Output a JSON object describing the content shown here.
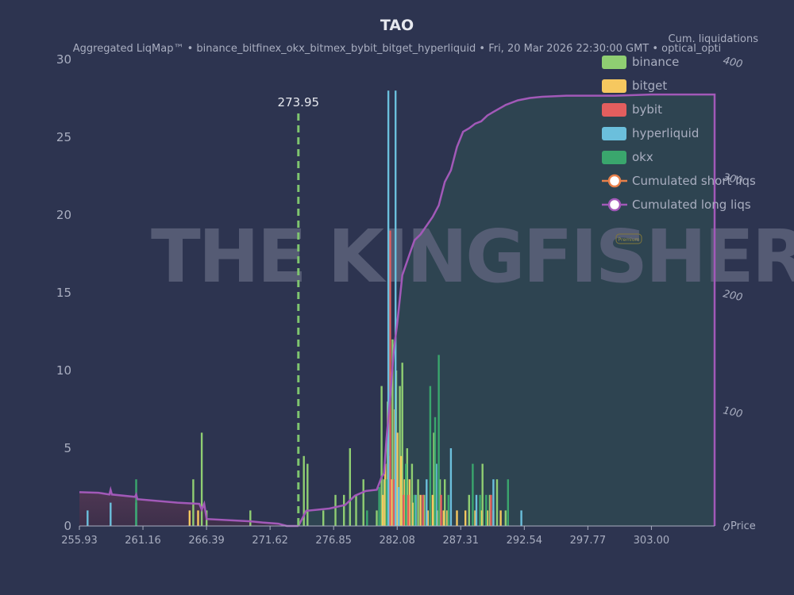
{
  "chart_data": {
    "type": "bar",
    "title": "TAO",
    "subtitle": "Aggregated LiqMap™  •  binance_bitfinex_okx_bitmex_bybit_bitget_hyperliquid  •  Fri, 20 Mar 2026 22:30:00 GMT  •  optical_opti",
    "y2_label": "Cum. liquidations",
    "x_label": "Price",
    "xlim": [
      255.93,
      308.2
    ],
    "ylim": [
      0,
      30
    ],
    "y2lim": [
      0,
      400
    ],
    "x_ticks": [
      "255.93",
      "261.16",
      "266.39",
      "271.62",
      "276.85",
      "282.08",
      "287.31",
      "292.54",
      "297.77",
      "303.00"
    ],
    "y_ticks": [
      "0",
      "5",
      "10",
      "15",
      "20",
      "25",
      "30"
    ],
    "y2_ticks": [
      "0",
      "100",
      "200",
      "300",
      "400"
    ],
    "current_price": {
      "value": 273.95,
      "label": "273.95"
    },
    "legend": [
      {
        "name": "binance",
        "color": "#8fce72",
        "kind": "bar"
      },
      {
        "name": "bitget",
        "color": "#f6c85f",
        "kind": "bar"
      },
      {
        "name": "bybit",
        "color": "#e35e5e",
        "kind": "bar"
      },
      {
        "name": "hyperliquid",
        "color": "#6bbfdc",
        "kind": "bar"
      },
      {
        "name": "okx",
        "color": "#3aa66d",
        "kind": "bar"
      },
      {
        "name": "Cumulated short liqs",
        "color": "#e8804a",
        "kind": "line"
      },
      {
        "name": "Cumulated long liqs",
        "color": "#a259b8",
        "kind": "line"
      }
    ],
    "series": [
      {
        "name": "binance",
        "color": "#8fce72",
        "points": [
          [
            265.3,
            3.0
          ],
          [
            266.0,
            6.0
          ],
          [
            266.4,
            1.0
          ],
          [
            270.0,
            1.0
          ],
          [
            274.4,
            4.5
          ],
          [
            274.7,
            4.0
          ],
          [
            276.0,
            1.0
          ],
          [
            277.0,
            2.0
          ],
          [
            277.7,
            2.0
          ],
          [
            278.2,
            5.0
          ],
          [
            278.7,
            2.0
          ],
          [
            279.3,
            3.0
          ],
          [
            280.4,
            1.0
          ],
          [
            280.8,
            9.0
          ],
          [
            281.0,
            3.0
          ],
          [
            281.3,
            8.0
          ],
          [
            281.7,
            12.0
          ],
          [
            282.0,
            10.0
          ],
          [
            282.3,
            9.0
          ],
          [
            282.5,
            10.5
          ],
          [
            282.9,
            5.0
          ],
          [
            283.3,
            4.0
          ],
          [
            283.8,
            3.0
          ],
          [
            284.3,
            2.0
          ],
          [
            285.1,
            6.0
          ],
          [
            285.6,
            3.0
          ],
          [
            286.0,
            3.0
          ],
          [
            288.0,
            2.0
          ],
          [
            289.1,
            4.0
          ],
          [
            289.7,
            2.0
          ],
          [
            290.3,
            3.0
          ],
          [
            291.0,
            1.0
          ]
        ]
      },
      {
        "name": "bitget",
        "color": "#f6c85f",
        "points": [
          [
            265.0,
            1.0
          ],
          [
            265.7,
            1.0
          ],
          [
            280.9,
            2.0
          ],
          [
            281.1,
            4.0
          ],
          [
            281.4,
            4.5
          ],
          [
            281.6,
            3.0
          ],
          [
            281.9,
            7.5
          ],
          [
            282.1,
            6.0
          ],
          [
            282.4,
            4.5
          ],
          [
            282.7,
            3.0
          ],
          [
            283.1,
            3.0
          ],
          [
            283.4,
            1.5
          ],
          [
            284.0,
            2.0
          ],
          [
            284.6,
            1.0
          ],
          [
            285.0,
            2.0
          ],
          [
            285.4,
            1.0
          ],
          [
            285.9,
            1.0
          ],
          [
            286.2,
            1.0
          ],
          [
            287.0,
            1.0
          ],
          [
            287.7,
            1.0
          ],
          [
            288.5,
            1.0
          ],
          [
            289.0,
            1.0
          ],
          [
            289.5,
            1.0
          ],
          [
            290.0,
            1.0
          ],
          [
            290.6,
            1.0
          ]
        ]
      },
      {
        "name": "bybit",
        "color": "#e35e5e",
        "points": [
          [
            281.5,
            19.0
          ],
          [
            281.8,
            3.0
          ],
          [
            282.6,
            2.0
          ],
          [
            283.0,
            2.0
          ],
          [
            284.2,
            2.0
          ],
          [
            285.7,
            2.0
          ],
          [
            289.8,
            2.0
          ]
        ]
      },
      {
        "name": "hyperliquid",
        "color": "#6bbfdc",
        "points": [
          [
            256.6,
            1.0
          ],
          [
            258.5,
            1.5
          ],
          [
            260.6,
            1.5
          ],
          [
            281.35,
            28.0
          ],
          [
            281.95,
            28.0
          ],
          [
            282.2,
            2.5
          ],
          [
            283.6,
            2.0
          ],
          [
            284.5,
            3.0
          ],
          [
            285.3,
            4.0
          ],
          [
            286.5,
            5.0
          ],
          [
            288.6,
            2.0
          ],
          [
            290.0,
            3.0
          ],
          [
            292.3,
            1.0
          ]
        ]
      },
      {
        "name": "okx",
        "color": "#3aa66d",
        "points": [
          [
            260.6,
            3.0
          ],
          [
            279.6,
            1.0
          ],
          [
            280.6,
            2.5
          ],
          [
            281.2,
            3.0
          ],
          [
            282.8,
            4.0
          ],
          [
            283.5,
            2.0
          ],
          [
            284.8,
            9.0
          ],
          [
            285.2,
            7.0
          ],
          [
            285.5,
            11.0
          ],
          [
            286.3,
            2.0
          ],
          [
            288.3,
            4.0
          ],
          [
            288.9,
            2.0
          ],
          [
            289.4,
            2.0
          ],
          [
            291.2,
            3.0
          ]
        ]
      }
    ],
    "cumulative_long": [
      [
        255.93,
        29
      ],
      [
        257.5,
        28.5
      ],
      [
        258.4,
        27
      ],
      [
        258.5,
        31
      ],
      [
        258.6,
        27
      ],
      [
        260.5,
        25
      ],
      [
        260.6,
        27
      ],
      [
        260.7,
        23
      ],
      [
        264.0,
        20
      ],
      [
        265.8,
        19
      ],
      [
        266.0,
        14
      ],
      [
        266.2,
        19
      ],
      [
        266.4,
        6
      ],
      [
        270.0,
        4
      ],
      [
        271.0,
        3
      ],
      [
        272.3,
        2
      ],
      [
        273.0,
        0
      ],
      [
        273.95,
        0
      ]
    ],
    "cumulative_short": [
      [
        273.95,
        0
      ],
      [
        274.6,
        13
      ],
      [
        276.5,
        15
      ],
      [
        277.8,
        18
      ],
      [
        278.6,
        26
      ],
      [
        279.5,
        30
      ],
      [
        280.4,
        31
      ],
      [
        280.8,
        42
      ],
      [
        281.0,
        45
      ],
      [
        281.2,
        75
      ],
      [
        281.5,
        110
      ],
      [
        281.8,
        150
      ],
      [
        282.1,
        175
      ],
      [
        282.5,
        215
      ],
      [
        283.0,
        230
      ],
      [
        283.5,
        245
      ],
      [
        284.0,
        250
      ],
      [
        285.0,
        265
      ],
      [
        285.5,
        275
      ],
      [
        286.0,
        295
      ],
      [
        286.5,
        305
      ],
      [
        287.0,
        325
      ],
      [
        287.5,
        338
      ],
      [
        288.0,
        341
      ],
      [
        288.5,
        345
      ],
      [
        289.0,
        347
      ],
      [
        289.5,
        352
      ],
      [
        290.0,
        355
      ],
      [
        290.5,
        358
      ],
      [
        291.0,
        361
      ],
      [
        292.0,
        365
      ],
      [
        293.0,
        367
      ],
      [
        294.0,
        368
      ],
      [
        296.0,
        369
      ],
      [
        300.0,
        369
      ],
      [
        303.0,
        370
      ],
      [
        308.2,
        370
      ]
    ],
    "watermark": "THE KINGFISHER.IO",
    "badge": "Premium"
  }
}
